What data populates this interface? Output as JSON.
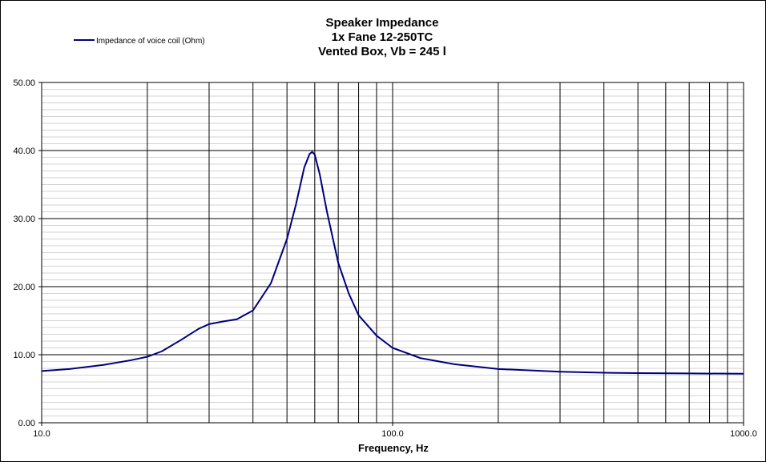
{
  "chart_data": {
    "type": "line",
    "title": "Speaker Impedance",
    "subtitle_lines": [
      "1x Fane 12-250TC",
      "Vented Box, Vb = 245 l"
    ],
    "xlabel": "Frequency, Hz",
    "ylabel": "",
    "x_scale": "log",
    "xlim": [
      10,
      1000
    ],
    "ylim": [
      0,
      50
    ],
    "x_tick_labels": [
      "10.0",
      "100.0",
      "1000.0"
    ],
    "y_tick_labels": [
      "0.00",
      "10.00",
      "20.00",
      "30.00",
      "40.00",
      "50.00"
    ],
    "grid": true,
    "legend_position": "top-left",
    "series": [
      {
        "name": "Impedance of voice coil (Ohm)",
        "color": "#000080",
        "x": [
          10,
          12,
          15,
          18,
          20,
          22,
          25,
          28,
          30,
          33,
          36,
          40,
          45,
          50,
          53,
          56,
          58,
          59,
          60,
          62,
          65,
          70,
          75,
          80,
          90,
          100,
          120,
          150,
          200,
          300,
          400,
          500,
          700,
          1000
        ],
        "y": [
          7.6,
          7.9,
          8.5,
          9.2,
          9.7,
          10.5,
          12.2,
          13.8,
          14.5,
          14.9,
          15.2,
          16.5,
          20.5,
          27.0,
          32.0,
          37.5,
          39.5,
          39.8,
          39.4,
          36.5,
          31.0,
          23.5,
          19.0,
          15.8,
          12.8,
          11.0,
          9.5,
          8.6,
          7.9,
          7.5,
          7.35,
          7.3,
          7.25,
          7.2
        ]
      }
    ]
  }
}
